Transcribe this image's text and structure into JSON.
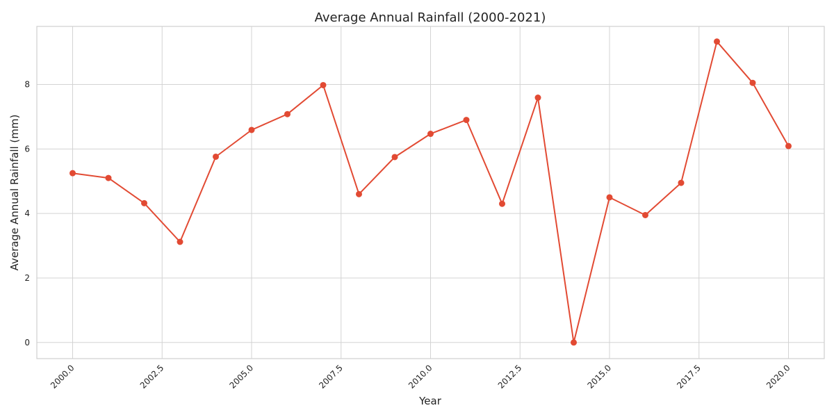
{
  "chart_data": {
    "type": "line",
    "title": "Average Annual Rainfall (2000-2021)",
    "xlabel": "Year",
    "ylabel": "Average Annual Rainfall (mm)",
    "xlim": [
      1999,
      2021
    ],
    "ylim": [
      -0.5,
      9.8
    ],
    "x_ticks": [
      "2000.0",
      "2002.5",
      "2005.0",
      "2007.5",
      "2010.0",
      "2012.5",
      "2015.0",
      "2017.5",
      "2020.0"
    ],
    "x_tick_values": [
      2000,
      2002.5,
      2005,
      2007.5,
      2010,
      2012.5,
      2015,
      2017.5,
      2020
    ],
    "y_ticks": [
      "0",
      "2",
      "4",
      "6",
      "8"
    ],
    "y_tick_values": [
      0,
      2,
      4,
      6,
      8
    ],
    "grid": true,
    "x_tick_rotation_deg": 45,
    "series": [
      {
        "color": "#e24a33",
        "marker": "circle",
        "x": [
          2000,
          2001,
          2002,
          2003,
          2004,
          2005,
          2006,
          2007,
          2008,
          2009,
          2010,
          2011,
          2012,
          2013,
          2014,
          2015,
          2016,
          2017,
          2018,
          2019,
          2020
        ],
        "values": [
          5.25,
          5.1,
          4.32,
          3.12,
          5.76,
          6.59,
          7.08,
          7.98,
          4.6,
          5.75,
          6.47,
          6.9,
          4.3,
          7.59,
          0.0,
          4.5,
          3.95,
          4.95,
          9.33,
          8.05,
          6.09
        ]
      }
    ]
  }
}
